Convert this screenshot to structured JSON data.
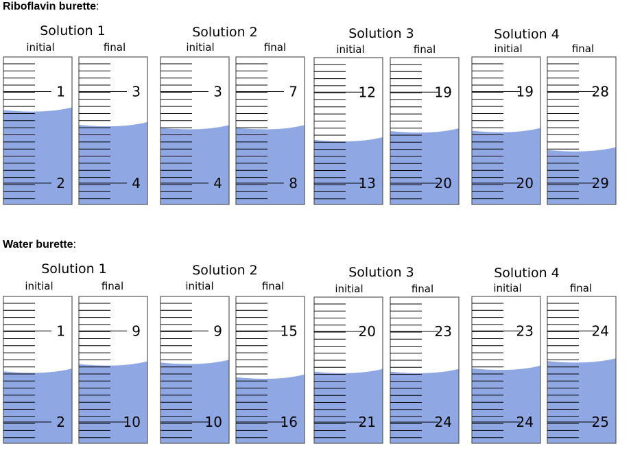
{
  "sections": [
    {
      "title": "Riboflavin burette",
      "suffix": ":",
      "solutions": [
        {
          "name": "Solution 1",
          "initial_label": "initial",
          "final_label": "final",
          "initial": {
            "upper": "1",
            "lower": "2",
            "level": 0.64
          },
          "final": {
            "upper": "3",
            "lower": "4",
            "level": 0.54
          }
        },
        {
          "name": "Solution 2",
          "initial_label": "initial",
          "final_label": "final",
          "initial": {
            "upper": "3",
            "lower": "4",
            "level": 0.52
          },
          "final": {
            "upper": "7",
            "lower": "8",
            "level": 0.52
          }
        },
        {
          "name": "Solution 3",
          "initial_label": "initial",
          "final_label": "final",
          "initial": {
            "upper": "12",
            "lower": "13",
            "level": 0.44
          },
          "final": {
            "upper": "19",
            "lower": "20",
            "level": 0.5
          }
        },
        {
          "name": "Solution 4",
          "initial_label": "initial",
          "final_label": "final",
          "initial": {
            "upper": "19",
            "lower": "20",
            "level": 0.5
          },
          "final": {
            "upper": "28",
            "lower": "29",
            "level": 0.37
          }
        }
      ]
    },
    {
      "title": "Water burette",
      "suffix": ":",
      "solutions": [
        {
          "name": "Solution 1",
          "initial_label": "initial",
          "final_label": "final",
          "initial": {
            "upper": "1",
            "lower": "2",
            "level": 0.49
          },
          "final": {
            "upper": "9",
            "lower": "10",
            "level": 0.54
          }
        },
        {
          "name": "Solution 2",
          "initial_label": "initial",
          "final_label": "final",
          "initial": {
            "upper": "9",
            "lower": "10",
            "level": 0.55
          },
          "final": {
            "upper": "15",
            "lower": "16",
            "level": 0.45
          }
        },
        {
          "name": "Solution 3",
          "initial_label": "initial",
          "final_label": "final",
          "initial": {
            "upper": "20",
            "lower": "21",
            "level": 0.49
          },
          "final": {
            "upper": "23",
            "lower": "24",
            "level": 0.49
          }
        },
        {
          "name": "Solution 4",
          "initial_label": "initial",
          "final_label": "final",
          "initial": {
            "upper": "23",
            "lower": "24",
            "level": 0.51
          },
          "final": {
            "upper": "24",
            "lower": "25",
            "level": 0.56
          }
        }
      ]
    }
  ],
  "colors": {
    "liquid": "#8fa8e3",
    "outline": "#555555",
    "tick": "#000000"
  }
}
